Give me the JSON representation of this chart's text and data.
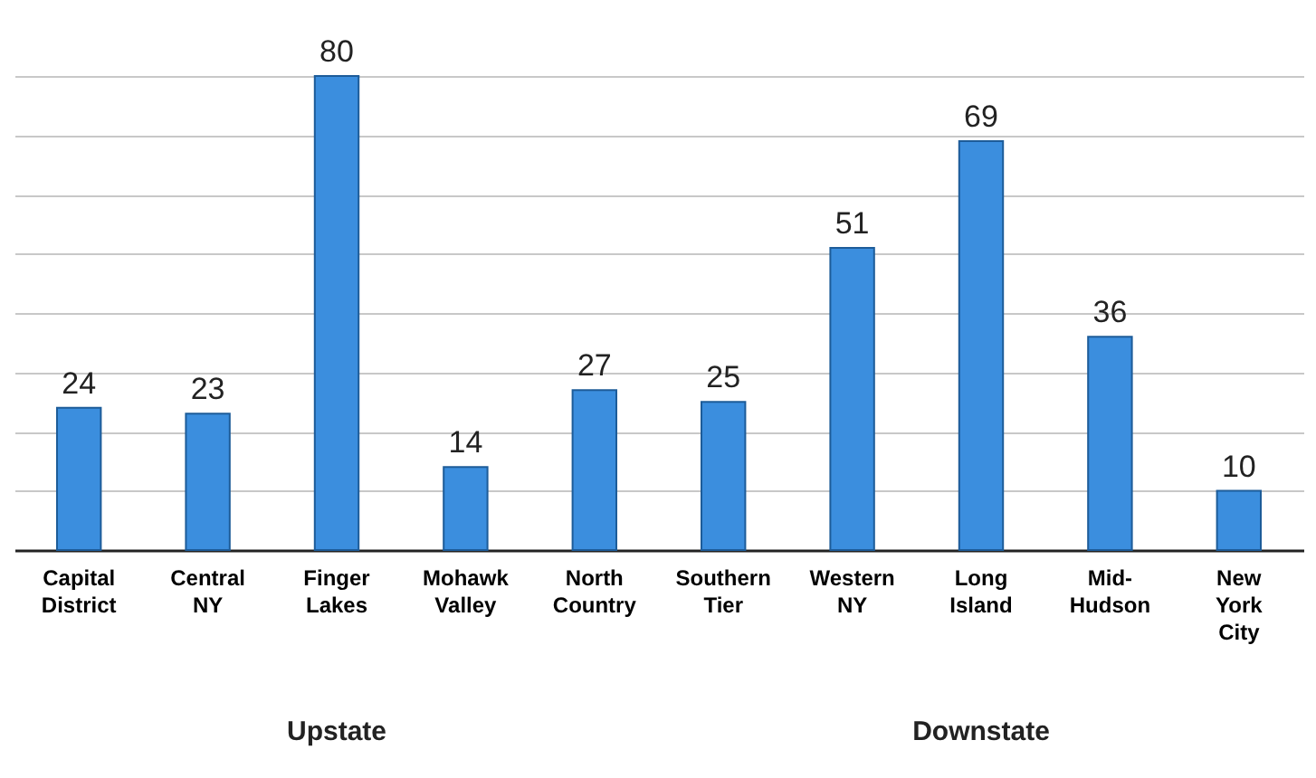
{
  "chart_data": {
    "type": "bar",
    "categories": [
      "Capital District",
      "Central NY",
      "Finger Lakes",
      "Mohawk Valley",
      "North Country",
      "Southern Tier",
      "Western NY",
      "Long Island",
      "Mid-Hudson",
      "New York City"
    ],
    "values": [
      24,
      23,
      80,
      14,
      27,
      25,
      51,
      69,
      36,
      10
    ],
    "color": "#3b8ede",
    "grid": "y",
    "data_labels": true,
    "annotations": [
      "Upstate",
      "Downstate"
    ]
  }
}
